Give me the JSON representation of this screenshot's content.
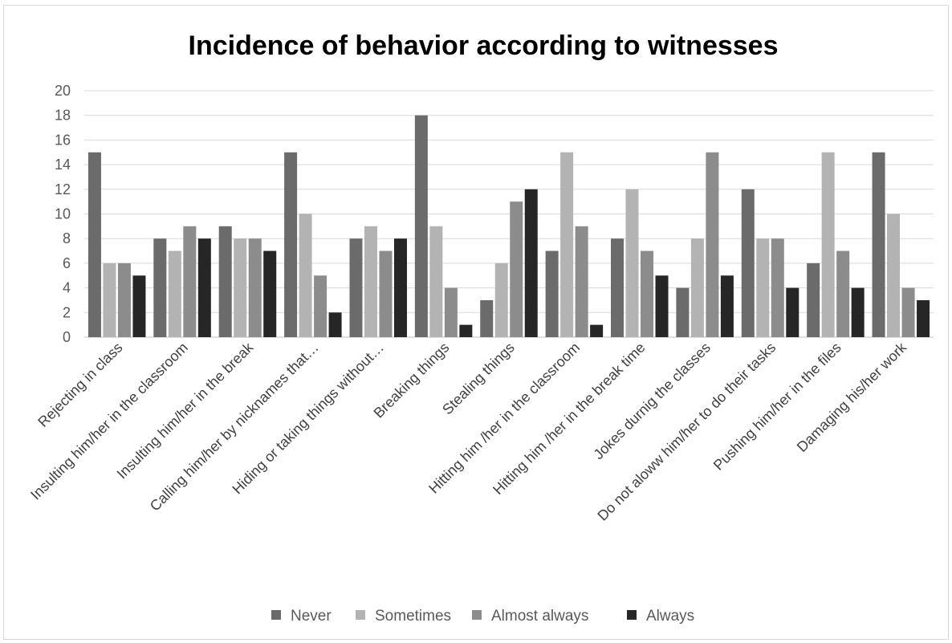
{
  "chart_data": {
    "type": "bar",
    "title": "Incidence of behavior according to witnesses",
    "xlabel": "",
    "ylabel": "",
    "ylim": [
      0,
      20
    ],
    "yticks": [
      0,
      2,
      4,
      6,
      8,
      10,
      12,
      14,
      16,
      18,
      20
    ],
    "grid": true,
    "legend_position": "bottom",
    "categories": [
      "Rejecting in class",
      "Insulting him/her in the classroom",
      "Insulting him/her in the break",
      "Calling him/her by nicknames that…",
      "Hiding or taking things without…",
      "Breaking things",
      "Stealing things",
      "Hitting him /her in the classroom",
      "Hitting him /her in the break time",
      "Jokes durnig the classes",
      "Do not aloww him/her to do their tasks",
      "Pushing him/her in the files",
      "Damaging his/her work"
    ],
    "series": [
      {
        "name": "Never",
        "color": "#6b6b6b",
        "values": [
          15,
          8,
          9,
          15,
          8,
          18,
          3,
          7,
          8,
          4,
          12,
          6,
          15
        ]
      },
      {
        "name": "Sometimes",
        "color": "#b3b3b3",
        "values": [
          6,
          7,
          8,
          10,
          9,
          9,
          6,
          15,
          12,
          8,
          8,
          15,
          10
        ]
      },
      {
        "name": "Almost always",
        "color": "#8c8c8c",
        "values": [
          6,
          9,
          8,
          5,
          7,
          4,
          11,
          9,
          7,
          15,
          8,
          7,
          4
        ]
      },
      {
        "name": "Always",
        "color": "#262626",
        "values": [
          5,
          8,
          7,
          2,
          8,
          1,
          12,
          1,
          5,
          5,
          4,
          4,
          3
        ]
      }
    ]
  }
}
